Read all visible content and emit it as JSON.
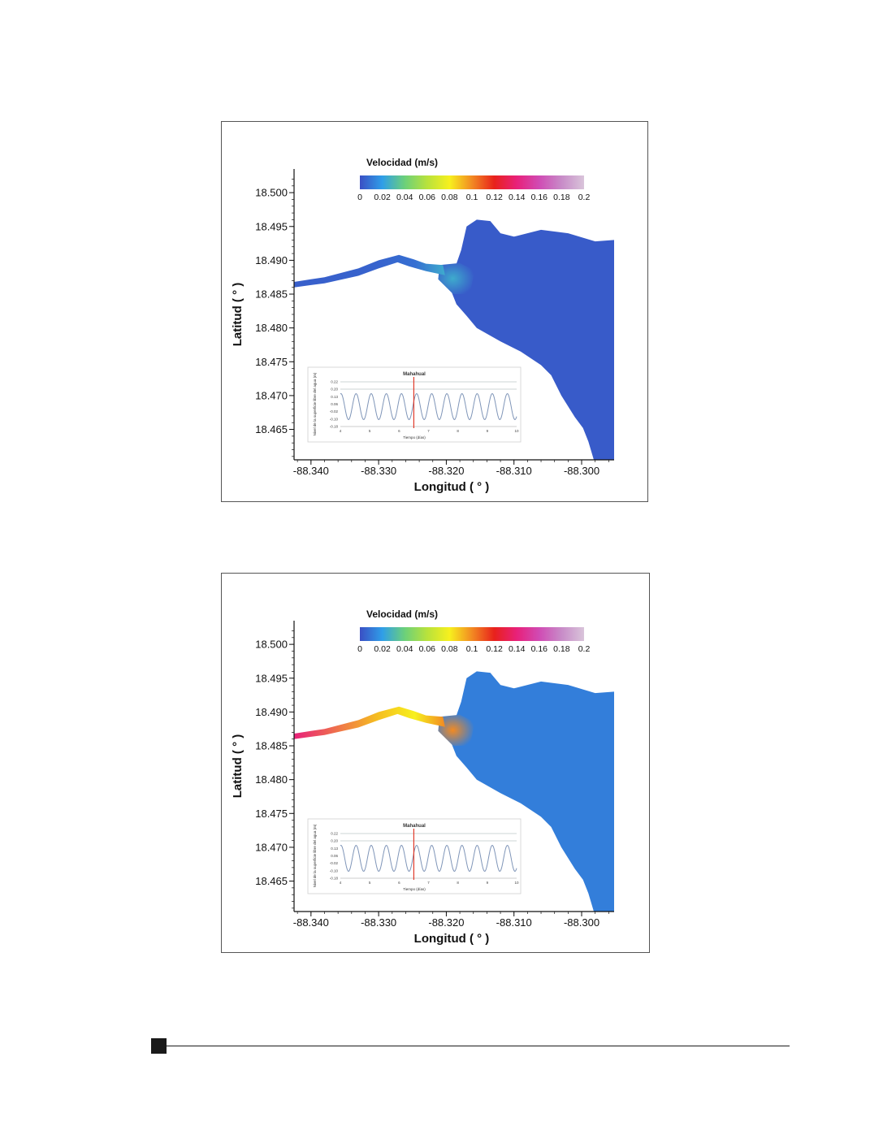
{
  "chart_data": [
    {
      "type": "heatmap",
      "colorbar": {
        "title": "Velocidad (m/s)",
        "ticks": [
          "0",
          "0.02",
          "0.04",
          "0.06",
          "0.08",
          "0.1",
          "0.12",
          "0.14",
          "0.16",
          "0.18",
          "0.2"
        ],
        "range": [
          0,
          0.2
        ],
        "colors": [
          "#3a4fc4",
          "#2f9ee8",
          "#6cd07a",
          "#b8e23c",
          "#f7f01e",
          "#f28a22",
          "#e8211c",
          "#e8217a",
          "#d04bb4",
          "#c88cc8",
          "#d9c4da"
        ]
      },
      "xlabel": "Longitud ( ° )",
      "ylabel": "Latitud ( ° )",
      "xticks": [
        "-88.340",
        "-88.330",
        "-88.320",
        "-88.310",
        "-88.300"
      ],
      "yticks": [
        "18.500",
        "18.495",
        "18.490",
        "18.485",
        "18.480",
        "18.475",
        "18.470",
        "18.465"
      ],
      "xlim": [
        -88.3425,
        -88.2952
      ],
      "ylim": [
        18.4605,
        18.5035
      ],
      "velocity_field": {
        "sea": 0.003,
        "channel_west": 0.004,
        "channel_mid": 0.005,
        "channel_east": 0.008,
        "inlet": 0.025
      },
      "inset": {
        "title": "Mahahual",
        "xlabel": "Tiempo (días)",
        "ylabel": "Nivel de la superficie libre del agua (m)",
        "xticks": [
          "4",
          "5",
          "6",
          "7",
          "8",
          "9",
          "10"
        ],
        "yticks": [
          "0.22",
          "0.20",
          "0.13",
          "0.06",
          "-0.02",
          "-0.10",
          "-0.18"
        ],
        "marker_day": 6.5
      }
    },
    {
      "type": "heatmap",
      "colorbar": {
        "title": "Velocidad (m/s)",
        "ticks": [
          "0",
          "0.02",
          "0.04",
          "0.06",
          "0.08",
          "0.1",
          "0.12",
          "0.14",
          "0.16",
          "0.18",
          "0.2"
        ],
        "range": [
          0,
          0.2
        ],
        "colors": [
          "#3a4fc4",
          "#2f9ee8",
          "#6cd07a",
          "#b8e23c",
          "#f7f01e",
          "#f28a22",
          "#e8211c",
          "#e8217a",
          "#d04bb4",
          "#c88cc8",
          "#d9c4da"
        ]
      },
      "xlabel": "Longitud ( ° )",
      "ylabel": "Latitud ( ° )",
      "xticks": [
        "-88.340",
        "-88.330",
        "-88.320",
        "-88.310",
        "-88.300"
      ],
      "yticks": [
        "18.500",
        "18.495",
        "18.490",
        "18.485",
        "18.480",
        "18.475",
        "18.470",
        "18.465"
      ],
      "xlim": [
        -88.3425,
        -88.2952
      ],
      "ylim": [
        18.4605,
        18.5035
      ],
      "velocity_field": {
        "sea": 0.012,
        "channel_west": 0.14,
        "channel_mid": 0.09,
        "channel_east": 0.08,
        "inlet": 0.1
      },
      "inset": {
        "title": "Mahahual",
        "xlabel": "Tiempo (días)",
        "ylabel": "Nivel de la superficie libre del agua (m)",
        "xticks": [
          "4",
          "5",
          "6",
          "7",
          "8",
          "9",
          "10"
        ],
        "yticks": [
          "0.22",
          "0.20",
          "0.13",
          "0.06",
          "-0.02",
          "-0.10",
          "-0.18"
        ],
        "marker_day": 6.5
      }
    }
  ]
}
